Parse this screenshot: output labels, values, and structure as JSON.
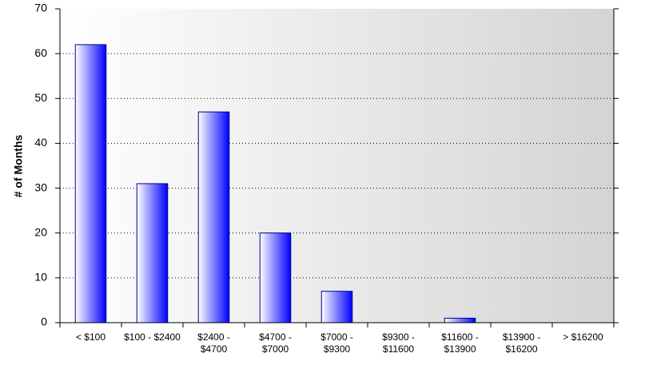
{
  "chart_data": {
    "type": "bar",
    "y_label": "# of Months",
    "categories": [
      "< $100",
      "$100 - $2400",
      "$2400 - $4700",
      "$4700 - $7000",
      "$7000 - $9300",
      "$9300 - $11600",
      "$11600 - $13900",
      "$13900 - $16200",
      "> $16200"
    ],
    "values": [
      62,
      31,
      47,
      20,
      7,
      0,
      1,
      0,
      0
    ],
    "color": "#0000ff",
    "ylim": [
      0,
      70
    ],
    "yticks": [
      0,
      10,
      20,
      30,
      40,
      50,
      60,
      70
    ],
    "grid": true
  }
}
